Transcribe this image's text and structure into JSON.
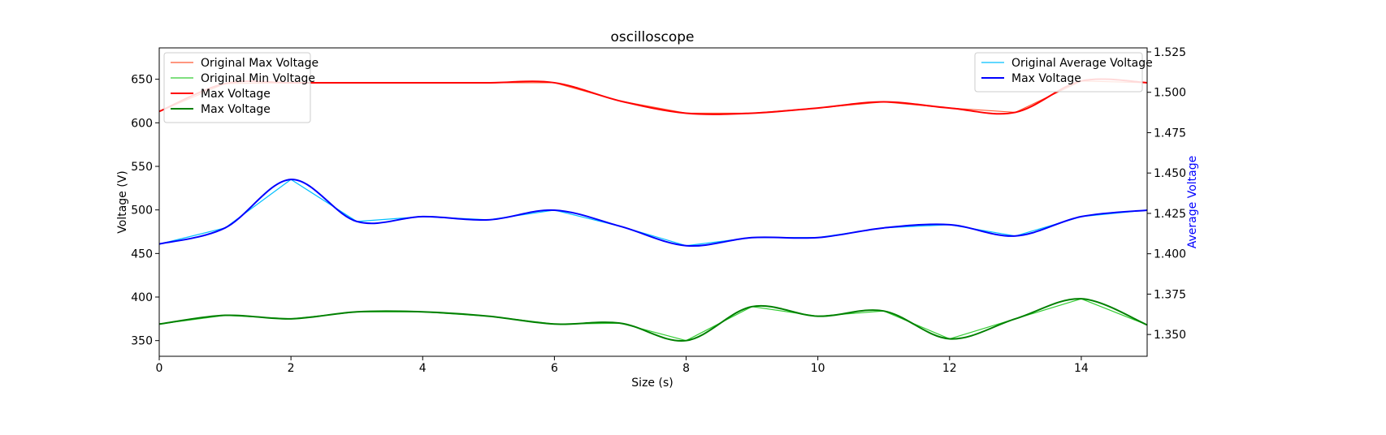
{
  "chart_data": {
    "type": "line",
    "title": "oscilloscope",
    "xlabel": "Size (s)",
    "ylabel": "Voltage (V)",
    "y2label": "Average Voltage",
    "xlim": [
      0,
      15
    ],
    "ylim": [
      332,
      686
    ],
    "y2lim": [
      1.3365,
      1.5275
    ],
    "x_ticks": [
      0,
      2,
      4,
      6,
      8,
      10,
      12,
      14
    ],
    "y_ticks": [
      350,
      400,
      450,
      500,
      550,
      600,
      650
    ],
    "y2_ticks": [
      1.35,
      1.375,
      1.4,
      1.425,
      1.45,
      1.475,
      1.5,
      1.525
    ],
    "grid": false,
    "legend_left_position": "upper-left",
    "legend_right_position": "upper-right",
    "x": [
      0,
      1,
      2,
      3,
      4,
      5,
      6,
      7,
      8,
      9,
      10,
      11,
      12,
      13,
      14,
      15
    ],
    "series": [
      {
        "name": "Original Max Voltage",
        "axis": "left",
        "color": "#ff5733",
        "style": "raw",
        "values": [
          613,
          645,
          646,
          646,
          646,
          646,
          646,
          625,
          611,
          611,
          617,
          624,
          617,
          612,
          648,
          646
        ]
      },
      {
        "name": "Original Min Voltage",
        "axis": "left",
        "color": "#33cc33",
        "style": "raw",
        "values": [
          369,
          379,
          375,
          383,
          383,
          378,
          369,
          370,
          350,
          389,
          378,
          384,
          352,
          375,
          398,
          368
        ]
      },
      {
        "name": "Max Voltage",
        "axis": "left",
        "color": "#ff0000",
        "style": "smooth",
        "values": [
          613,
          645,
          646,
          646,
          646,
          646,
          646,
          625,
          611,
          611,
          617,
          624,
          617,
          612,
          648,
          646
        ]
      },
      {
        "name": "Max Voltage",
        "axis": "left",
        "color": "#008000",
        "style": "smooth",
        "values": [
          369,
          379,
          375,
          383,
          383,
          378,
          369,
          370,
          350,
          389,
          378,
          384,
          352,
          375,
          398,
          368
        ]
      },
      {
        "name": "Original Average Voltage",
        "axis": "right",
        "color": "#00bfff",
        "style": "raw",
        "values": [
          1.406,
          1.416,
          1.446,
          1.42,
          1.423,
          1.421,
          1.427,
          1.417,
          1.405,
          1.41,
          1.41,
          1.416,
          1.418,
          1.411,
          1.423,
          1.427
        ]
      },
      {
        "name": "Max Voltage",
        "axis": "right",
        "color": "#0000ff",
        "style": "smooth",
        "values": [
          1.406,
          1.416,
          1.446,
          1.42,
          1.423,
          1.421,
          1.427,
          1.417,
          1.405,
          1.41,
          1.41,
          1.416,
          1.418,
          1.411,
          1.423,
          1.427
        ]
      }
    ],
    "legend_left": [
      "Original Max Voltage",
      "Original Min Voltage",
      "Max Voltage",
      "Max Voltage"
    ],
    "legend_right": [
      "Original Average Voltage",
      "Max Voltage"
    ],
    "colors": {
      "axis": "#000000",
      "y2label": "#0000ff",
      "legend_border": "#cccccc"
    }
  }
}
